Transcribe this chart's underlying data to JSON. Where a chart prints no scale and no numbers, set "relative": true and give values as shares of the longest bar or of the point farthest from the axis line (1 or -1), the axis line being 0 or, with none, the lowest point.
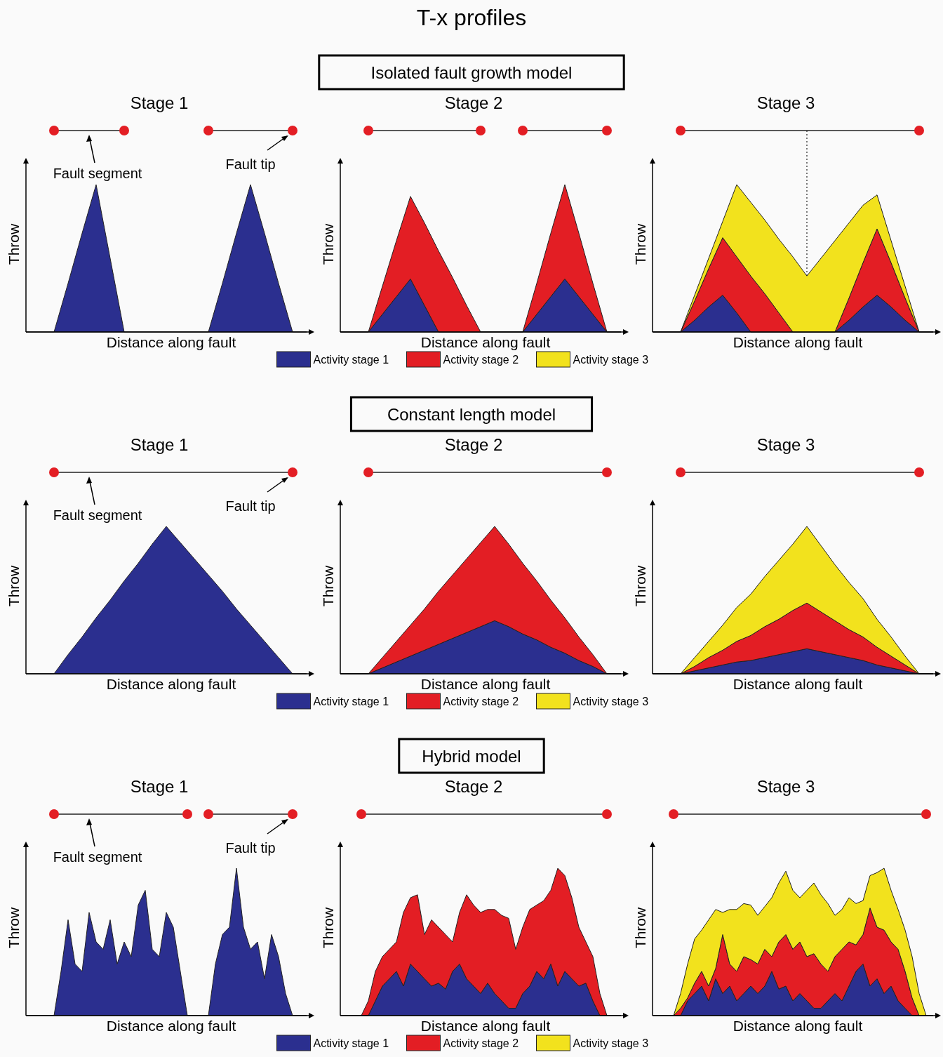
{
  "chart_data": [
    {
      "type": "area",
      "stacked": true,
      "relative": true,
      "legend": false,
      "title": "Stage 1",
      "xlabel": "Distance along fault",
      "ylabel": "Throw",
      "annotations": [
        "Fault segment",
        "Fault tip"
      ],
      "categories": [
        null,
        null,
        null,
        null,
        null,
        null,
        null,
        null,
        null,
        null,
        null,
        null,
        null,
        null,
        null,
        null,
        null,
        null,
        null,
        null,
        null
      ],
      "series": [
        {
          "color": "#2b2f8f",
          "values": [
            0,
            0,
            0,
            0.33,
            0.67,
            1,
            0.5,
            0,
            0,
            0,
            0,
            0,
            0,
            0,
            0.33,
            0.67,
            1,
            0.67,
            0.33,
            0,
            0
          ]
        }
      ]
    },
    {
      "type": "area",
      "stacked": true,
      "relative": true,
      "legend": false,
      "title": "Stage 2",
      "subtitle": "Isolated fault growth model",
      "xlabel": "Distance along fault",
      "ylabel": "Throw",
      "annotations": [
        "T-x profiles"
      ],
      "categories": [
        null,
        null,
        null,
        null,
        null,
        null,
        null,
        null,
        null,
        null,
        null,
        null,
        null,
        null,
        null,
        null,
        null,
        null,
        null,
        null,
        null
      ],
      "series": [
        {
          "color": "#2b2f8f",
          "values": [
            0,
            0,
            0,
            0.12,
            0.24,
            0.36,
            0.18,
            0,
            0,
            0,
            0,
            0,
            0,
            0,
            0.12,
            0.24,
            0.36,
            0.24,
            0.12,
            0,
            0
          ]
        },
        {
          "color": "#e31e24",
          "values": [
            0,
            0,
            0,
            0.19,
            0.38,
            0.56,
            0.56,
            0.55,
            0.37,
            0.18,
            0,
            0,
            0,
            0,
            0.21,
            0.43,
            0.64,
            0.43,
            0.21,
            0,
            0
          ]
        }
      ]
    },
    {
      "type": "area",
      "stacked": true,
      "relative": true,
      "legend": "bottom",
      "title": "Stage 3",
      "xlabel": "Distance along fault",
      "ylabel": "Throw",
      "categories": [
        null,
        null,
        null,
        null,
        null,
        null,
        null,
        null,
        null,
        null,
        null,
        null,
        null,
        null,
        null,
        null,
        null,
        null,
        null,
        null,
        null
      ],
      "series": [
        {
          "name": "Activity stage 1",
          "color": "#2b2f8f",
          "values": [
            0,
            0,
            0,
            0.08,
            0.17,
            0.25,
            0.13,
            0,
            0,
            0,
            0,
            0,
            0,
            0,
            0.08,
            0.17,
            0.25,
            0.17,
            0.08,
            0,
            0
          ]
        },
        {
          "name": "Activity stage 2",
          "color": "#e31e24",
          "values": [
            0,
            0,
            0,
            0.13,
            0.26,
            0.39,
            0.38,
            0.38,
            0.26,
            0.13,
            0,
            0,
            0,
            0,
            0.15,
            0.3,
            0.45,
            0.3,
            0.15,
            0,
            0
          ]
        },
        {
          "name": "Activity stage 3",
          "color": "#f2e21d",
          "values": [
            0,
            0,
            0,
            0.04,
            0.07,
            0.11,
            0.49,
            0.5,
            0.5,
            0.5,
            0.51,
            0.38,
            0.5,
            0.62,
            0.51,
            0.39,
            0.23,
            0.15,
            0.08,
            0,
            0
          ]
        }
      ]
    },
    {
      "type": "area",
      "stacked": true,
      "relative": true,
      "legend": false,
      "title": "Stage 1",
      "xlabel": "Distance along fault",
      "ylabel": "Throw",
      "annotations": [
        "Fault segment",
        "Fault tip"
      ],
      "categories": [
        null,
        null,
        null,
        null,
        null,
        null,
        null,
        null,
        null,
        null,
        null,
        null,
        null,
        null,
        null,
        null,
        null,
        null,
        null,
        null,
        null
      ],
      "series": [
        {
          "color": "#2b2f8f",
          "values": [
            0,
            0,
            0,
            0.13,
            0.25,
            0.38,
            0.5,
            0.63,
            0.75,
            0.88,
            1,
            0.89,
            0.78,
            0.67,
            0.56,
            0.44,
            0.33,
            0.22,
            0.11,
            0,
            0
          ]
        }
      ]
    },
    {
      "type": "area",
      "stacked": true,
      "relative": true,
      "legend": false,
      "title": "Stage 2",
      "subtitle": "Constant length model",
      "xlabel": "Distance along fault",
      "ylabel": "Throw",
      "categories": [
        null,
        null,
        null,
        null,
        null,
        null,
        null,
        null,
        null,
        null,
        null,
        null,
        null,
        null,
        null,
        null,
        null,
        null,
        null,
        null,
        null
      ],
      "series": [
        {
          "color": "#2b2f8f",
          "values": [
            0,
            0,
            0,
            0.04,
            0.08,
            0.12,
            0.16,
            0.2,
            0.24,
            0.28,
            0.32,
            0.36,
            0.32,
            0.27,
            0.23,
            0.18,
            0.14,
            0.09,
            0.05,
            0,
            0
          ]
        },
        {
          "color": "#e31e24",
          "values": [
            0,
            0,
            0,
            0.07,
            0.14,
            0.21,
            0.28,
            0.36,
            0.43,
            0.5,
            0.57,
            0.64,
            0.56,
            0.48,
            0.4,
            0.32,
            0.24,
            0.16,
            0.08,
            0,
            0
          ]
        }
      ]
    },
    {
      "type": "area",
      "stacked": true,
      "relative": true,
      "legend": "bottom",
      "title": "Stage 3",
      "xlabel": "Distance along fault",
      "ylabel": "Throw",
      "categories": [
        null,
        null,
        null,
        null,
        null,
        null,
        null,
        null,
        null,
        null,
        null,
        null,
        null,
        null,
        null,
        null,
        null,
        null,
        null,
        null,
        null
      ],
      "series": [
        {
          "name": "Activity stage 1",
          "color": "#2b2f8f",
          "values": [
            0,
            0,
            0,
            0.02,
            0.04,
            0.06,
            0.08,
            0.09,
            0.11,
            0.13,
            0.15,
            0.17,
            0.15,
            0.13,
            0.11,
            0.09,
            0.06,
            0.04,
            0.02,
            0,
            0
          ]
        },
        {
          "name": "Activity stage 2",
          "color": "#e31e24",
          "values": [
            0,
            0,
            0,
            0.03,
            0.07,
            0.1,
            0.14,
            0.17,
            0.21,
            0.24,
            0.28,
            0.31,
            0.27,
            0.23,
            0.19,
            0.16,
            0.12,
            0.08,
            0.04,
            0,
            0
          ]
        },
        {
          "name": "Activity stage 3",
          "color": "#f2e21d",
          "values": [
            0,
            0,
            0,
            0.06,
            0.11,
            0.17,
            0.23,
            0.28,
            0.34,
            0.4,
            0.45,
            0.52,
            0.45,
            0.38,
            0.32,
            0.26,
            0.19,
            0.13,
            0.06,
            0,
            0
          ]
        }
      ]
    },
    {
      "type": "area",
      "stacked": true,
      "relative": true,
      "legend": false,
      "title": "Stage 1",
      "xlabel": "Distance along fault",
      "ylabel": "Throw",
      "annotations": [
        "Fault segment",
        "Fault tip"
      ],
      "categories": [
        null,
        null,
        null,
        null,
        null,
        null,
        null,
        null,
        null,
        null,
        null,
        null,
        null,
        null,
        null,
        null,
        null,
        null,
        null,
        null,
        null,
        null,
        null,
        null,
        null,
        null,
        null,
        null,
        null,
        null,
        null,
        null,
        null,
        null,
        null,
        null,
        null,
        null,
        null,
        null,
        null
      ],
      "series": [
        {
          "color": "#2b2f8f",
          "values": [
            0,
            0,
            0,
            0,
            0,
            0.3,
            0.65,
            0.35,
            0.3,
            0.7,
            0.5,
            0.45,
            0.65,
            0.35,
            0.5,
            0.4,
            0.75,
            0.85,
            0.45,
            0.4,
            0.7,
            0.6,
            0.3,
            0,
            0,
            0,
            0,
            0.35,
            0.55,
            0.6,
            1,
            0.6,
            0.45,
            0.5,
            0.25,
            0.55,
            0.4,
            0.15,
            0,
            0,
            0
          ]
        }
      ]
    },
    {
      "type": "area",
      "stacked": true,
      "relative": true,
      "legend": false,
      "title": "Stage 2",
      "subtitle": "Hybrid model",
      "xlabel": "Distance along fault",
      "ylabel": "Throw",
      "categories": [
        null,
        null,
        null,
        null,
        null,
        null,
        null,
        null,
        null,
        null,
        null,
        null,
        null,
        null,
        null,
        null,
        null,
        null,
        null,
        null,
        null,
        null,
        null,
        null,
        null,
        null,
        null,
        null,
        null,
        null,
        null,
        null,
        null,
        null,
        null,
        null,
        null,
        null,
        null,
        null,
        null
      ],
      "series": [
        {
          "color": "#2b2f8f",
          "values": [
            0,
            0,
            0,
            0,
            0,
            0.1,
            0.2,
            0.25,
            0.3,
            0.2,
            0.35,
            0.3,
            0.25,
            0.2,
            0.22,
            0.18,
            0.3,
            0.35,
            0.25,
            0.2,
            0.15,
            0.22,
            0.15,
            0.1,
            0.05,
            0.05,
            0.15,
            0.2,
            0.3,
            0.25,
            0.35,
            0.2,
            0.3,
            0.25,
            0.2,
            0.22,
            0.1,
            0,
            0,
            0,
            0
          ]
        },
        {
          "color": "#e31e24",
          "values": [
            0,
            0,
            0,
            0,
            0.1,
            0.2,
            0.2,
            0.2,
            0.2,
            0.5,
            0.45,
            0.52,
            0.3,
            0.45,
            0.38,
            0.37,
            0.2,
            0.35,
            0.57,
            0.55,
            0.55,
            0.5,
            0.57,
            0.58,
            0.61,
            0.4,
            0.45,
            0.52,
            0.45,
            0.53,
            0.5,
            0.8,
            0.65,
            0.55,
            0.4,
            0.28,
            0.3,
            0.15,
            0,
            0,
            0
          ]
        }
      ]
    },
    {
      "type": "area",
      "stacked": true,
      "relative": true,
      "legend": "bottom",
      "title": "Stage 3",
      "xlabel": "Distance along fault",
      "ylabel": "Throw",
      "categories": [
        null,
        null,
        null,
        null,
        null,
        null,
        null,
        null,
        null,
        null,
        null,
        null,
        null,
        null,
        null,
        null,
        null,
        null,
        null,
        null,
        null,
        null,
        null,
        null,
        null,
        null,
        null,
        null,
        null,
        null,
        null,
        null,
        null,
        null,
        null,
        null,
        null,
        null,
        null,
        null,
        null
      ],
      "series": [
        {
          "name": "Activity stage 1",
          "color": "#2b2f8f",
          "values": [
            0,
            0,
            0,
            0,
            0,
            0.1,
            0.15,
            0.2,
            0.1,
            0.25,
            0.15,
            0.2,
            0.1,
            0.15,
            0.2,
            0.15,
            0.2,
            0.3,
            0.18,
            0.2,
            0.1,
            0.15,
            0.1,
            0.05,
            0.05,
            0.1,
            0.15,
            0.1,
            0.2,
            0.3,
            0.35,
            0.2,
            0.25,
            0.15,
            0.2,
            0.1,
            0.05,
            0,
            0,
            0,
            0
          ]
        },
        {
          "name": "Activity stage 2",
          "color": "#e31e24",
          "values": [
            0,
            0,
            0,
            0,
            0.05,
            0.02,
            0.07,
            0.1,
            0.1,
            0.07,
            0.4,
            0.15,
            0.2,
            0.25,
            0.18,
            0.2,
            0.25,
            0.1,
            0.32,
            0.35,
            0.35,
            0.35,
            0.3,
            0.37,
            0.3,
            0.2,
            0.25,
            0.35,
            0.3,
            0.18,
            0.2,
            0.53,
            0.35,
            0.43,
            0.3,
            0.35,
            0.25,
            0.12,
            0,
            0,
            0
          ]
        },
        {
          "name": "Activity stage 3",
          "color": "#f2e21d",
          "values": [
            0,
            0,
            0,
            0,
            0.1,
            0.23,
            0.3,
            0.28,
            0.45,
            0.4,
            0.15,
            0.37,
            0.42,
            0.36,
            0.37,
            0.33,
            0.29,
            0.4,
            0.4,
            0.43,
            0.4,
            0.3,
            0.45,
            0.48,
            0.47,
            0.46,
            0.28,
            0.27,
            0.3,
            0.28,
            0.23,
            0.22,
            0.37,
            0.42,
            0.35,
            0.27,
            0.28,
            0.28,
            0.15,
            0,
            0
          ]
        }
      ]
    }
  ]
}
